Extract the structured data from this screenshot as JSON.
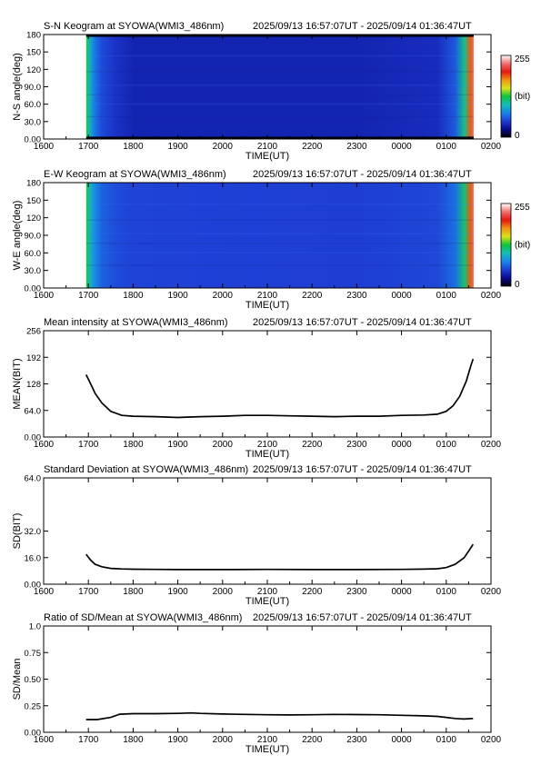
{
  "colorbar": {
    "stops": [
      "#000000",
      "#0a0a90",
      "#1f3fd6",
      "#1a86e8",
      "#14bdb6",
      "#11c23a",
      "#d9e31a",
      "#f09314",
      "#e3170f",
      "#f07070",
      "#ffffff"
    ],
    "max_label": "255",
    "unit_label": "(bit)",
    "min_label": "0"
  },
  "panels": [
    {
      "id": "sn-keogram",
      "title": "S-N Keogram at SYOWA(WMI3_486nm)",
      "period": "2025/09/13 16:57:07UT - 2025/09/14 01:36:47UT",
      "ylabel": "N-S angle(deg)",
      "xlabel": "TIME(UT)",
      "yticks": [
        "0.00",
        "30.0",
        "60.0",
        "90.0",
        "120",
        "150",
        "180"
      ],
      "xticks": [
        "1600",
        "1700",
        "1800",
        "1900",
        "2000",
        "2100",
        "2200",
        "2300",
        "0000",
        "0100",
        "0200"
      ],
      "has_colorbar": true
    },
    {
      "id": "ew-keogram",
      "title": "E-W Keogram at SYOWA(WMI3_486nm)",
      "period": "2025/09/13 16:57:07UT - 2025/09/14 01:36:47UT",
      "ylabel": "W-E angle(deg)",
      "xlabel": "TIME(UT)",
      "yticks": [
        "0.00",
        "30.0",
        "60.0",
        "90.0",
        "120",
        "150",
        "180"
      ],
      "xticks": [
        "1600",
        "1700",
        "1800",
        "1900",
        "2000",
        "2100",
        "2200",
        "2300",
        "0000",
        "0100",
        "0200"
      ],
      "has_colorbar": true
    },
    {
      "id": "mean",
      "title": "Mean intensity at SYOWA(WMI3_486nm)",
      "period": "2025/09/13 16:57:07UT - 2025/09/14 01:36:47UT",
      "ylabel": "MEAN(BIT)",
      "xlabel": "TIME(UT)",
      "yticks": [
        "0.00",
        "64.0",
        "128",
        "192",
        "256"
      ],
      "xticks": [
        "1600",
        "1700",
        "1800",
        "1900",
        "2000",
        "2100",
        "2200",
        "2300",
        "0000",
        "0100",
        "0200"
      ],
      "has_colorbar": false
    },
    {
      "id": "sd",
      "title": "Standard Deviation at SYOWA(WMI3_486nm)",
      "period": "2025/09/13 16:57:07UT - 2025/09/14 01:36:47UT",
      "ylabel": "SD(BIT)",
      "xlabel": "TIME(UT)",
      "yticks": [
        "0.00",
        "16.0",
        "32.0",
        "64.0"
      ],
      "xticks": [
        "1600",
        "1700",
        "1800",
        "1900",
        "2000",
        "2100",
        "2200",
        "2300",
        "0000",
        "0100",
        "0200"
      ],
      "has_colorbar": false
    },
    {
      "id": "ratio",
      "title": "Ratio of SD/Mean at SYOWA(WMI3_486nm)",
      "period": "2025/09/13 16:57:07UT - 2025/09/14 01:36:47UT",
      "ylabel": "SD/Mean",
      "xlabel": "TIME(UT)",
      "yticks": [
        "0.00",
        "0.25",
        "0.50",
        "0.75",
        "1.0"
      ],
      "xticks": [
        "1600",
        "1700",
        "1800",
        "1900",
        "2000",
        "2100",
        "2200",
        "2300",
        "0000",
        "0100",
        "0200"
      ],
      "has_colorbar": false
    }
  ],
  "chart_data": [
    {
      "type": "heatmap",
      "title": "S-N Keogram at SYOWA(WMI3_486nm)",
      "xlabel": "TIME(UT)",
      "ylabel": "N-S angle(deg)",
      "x_range_hours": [
        16,
        26
      ],
      "data_x_range_hours": [
        16.952,
        25.613
      ],
      "ylim": [
        0,
        180
      ],
      "value_range_bit": [
        0,
        255
      ],
      "time_profile": {
        "x_hours": [
          16.952,
          17.0,
          17.05,
          17.15,
          17.3,
          17.6,
          18.0,
          23.0,
          24.8,
          25.2,
          25.4,
          25.55,
          25.613
        ],
        "value_bit": [
          130,
          110,
          90,
          70,
          55,
          45,
          38,
          38,
          42,
          60,
          110,
          190,
          230
        ]
      },
      "dark_rows_deg": [
        [
          0,
          4
        ],
        [
          176,
          180
        ]
      ]
    },
    {
      "type": "heatmap",
      "title": "E-W Keogram at SYOWA(WMI3_486nm)",
      "xlabel": "TIME(UT)",
      "ylabel": "W-E angle(deg)",
      "x_range_hours": [
        16,
        26
      ],
      "data_x_range_hours": [
        16.952,
        25.613
      ],
      "ylim": [
        0,
        180
      ],
      "value_range_bit": [
        0,
        255
      ],
      "time_profile": {
        "x_hours": [
          16.952,
          17.0,
          17.05,
          17.15,
          17.3,
          17.6,
          18.0,
          23.0,
          24.8,
          25.2,
          25.4,
          25.55,
          25.613
        ],
        "value_bit": [
          130,
          112,
          95,
          78,
          64,
          56,
          52,
          50,
          54,
          68,
          115,
          190,
          230
        ]
      }
    },
    {
      "type": "line",
      "title": "Mean intensity at SYOWA(WMI3_486nm)",
      "xlabel": "TIME(UT)",
      "ylabel": "MEAN(BIT)",
      "ylim": [
        0,
        256
      ],
      "x_range_hours": [
        16,
        26
      ],
      "x": [
        16.95,
        17.05,
        17.15,
        17.3,
        17.5,
        17.75,
        18.0,
        18.5,
        19.0,
        19.2,
        19.5,
        20.0,
        20.5,
        21.0,
        21.5,
        22.0,
        22.5,
        23.0,
        23.5,
        24.0,
        24.5,
        24.8,
        25.0,
        25.15,
        25.3,
        25.45,
        25.55,
        25.6
      ],
      "y": [
        150,
        128,
        105,
        82,
        62,
        52,
        50,
        49,
        47,
        48,
        49,
        50,
        52,
        52,
        51,
        50,
        49,
        50,
        50,
        52,
        53,
        55,
        62,
        75,
        98,
        135,
        172,
        188
      ]
    },
    {
      "type": "line",
      "title": "Standard Deviation at SYOWA(WMI3_486nm)",
      "xlabel": "TIME(UT)",
      "ylabel": "SD(BIT)",
      "ylim": [
        0,
        64
      ],
      "x_range_hours": [
        16,
        26
      ],
      "x": [
        16.95,
        17.05,
        17.15,
        17.3,
        17.5,
        17.75,
        18.0,
        18.5,
        19.0,
        20.0,
        21.0,
        22.0,
        23.0,
        24.0,
        24.5,
        24.8,
        25.0,
        25.2,
        25.4,
        25.55,
        25.6
      ],
      "y": [
        18,
        14.5,
        12,
        10.5,
        9.5,
        9.2,
        9.0,
        8.9,
        8.8,
        8.8,
        8.9,
        8.8,
        8.8,
        8.9,
        9.1,
        9.3,
        10.0,
        12,
        16,
        22,
        24
      ]
    },
    {
      "type": "line",
      "title": "Ratio of SD/Mean at SYOWA(WMI3_486nm)",
      "xlabel": "TIME(UT)",
      "ylabel": "SD/Mean",
      "ylim": [
        0,
        1.0
      ],
      "x_range_hours": [
        16,
        26
      ],
      "x": [
        16.95,
        17.2,
        17.5,
        17.7,
        18.0,
        18.5,
        19.0,
        19.3,
        19.5,
        20.0,
        20.5,
        21.0,
        21.5,
        22.0,
        22.5,
        23.0,
        23.5,
        24.0,
        24.5,
        24.8,
        25.0,
        25.2,
        25.4,
        25.6
      ],
      "y": [
        0.12,
        0.12,
        0.14,
        0.17,
        0.175,
        0.175,
        0.178,
        0.182,
        0.178,
        0.172,
        0.168,
        0.165,
        0.163,
        0.165,
        0.168,
        0.167,
        0.165,
        0.16,
        0.155,
        0.15,
        0.14,
        0.13,
        0.125,
        0.13
      ]
    }
  ]
}
